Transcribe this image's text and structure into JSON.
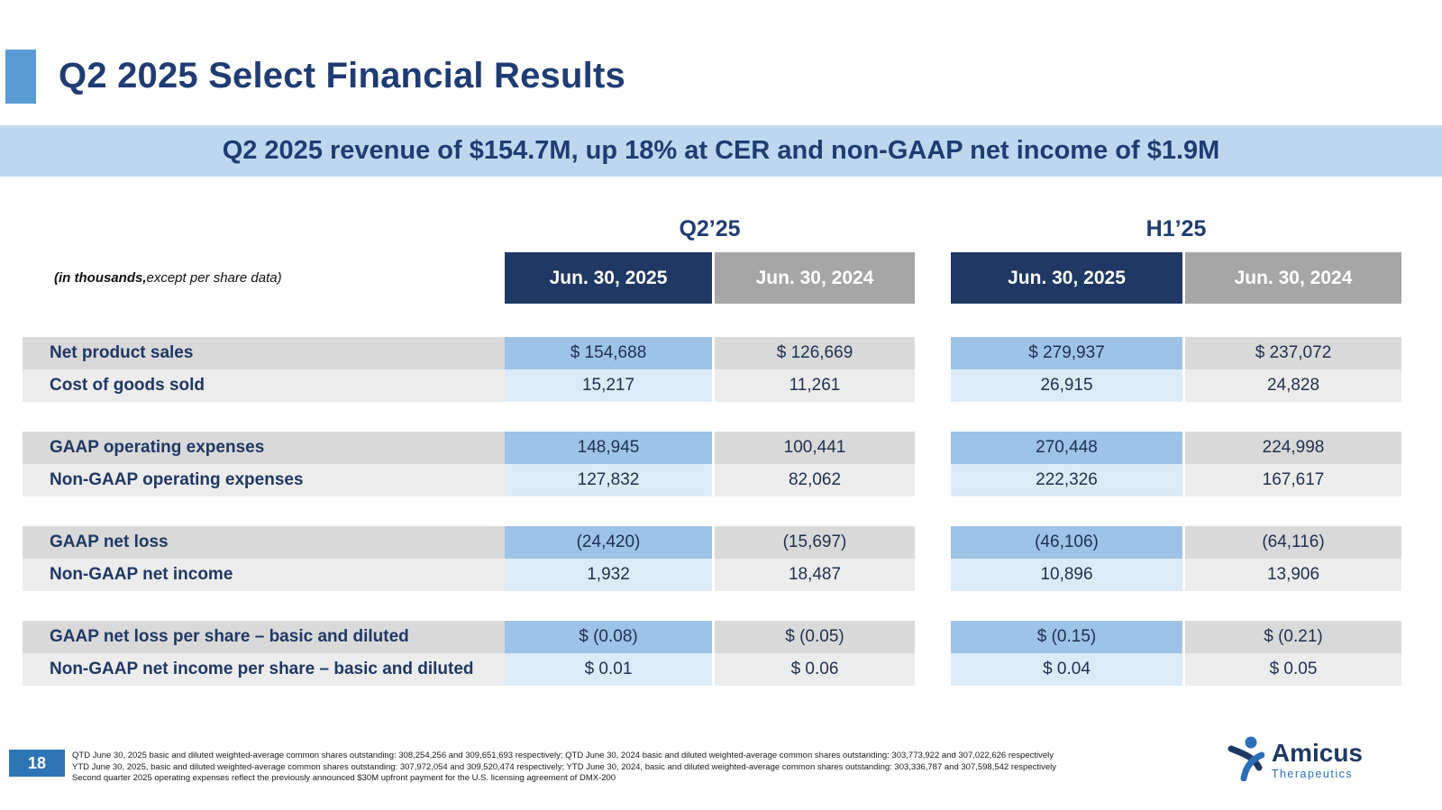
{
  "slide": {
    "title": "Q2 2025 Select Financial Results",
    "banner": "Q2 2025 revenue of $154.7M, up 18% at CER and non-GAAP net income of $1.9M",
    "units_note_bold": "(in thousands,",
    "units_note_rest": " except per share data)"
  },
  "table": {
    "groups": [
      {
        "label": "Q2’25",
        "columns": [
          "Jun. 30, 2025",
          "Jun. 30, 2024"
        ]
      },
      {
        "label": "H1’25",
        "columns": [
          "Jun. 30, 2025",
          "Jun. 30, 2024"
        ]
      }
    ],
    "row_groups": [
      {
        "rows": [
          {
            "label": "Net product sales",
            "values": [
              "$ 154,688",
              "$ 126,669",
              "$ 279,937",
              "$ 237,072"
            ]
          },
          {
            "label": "Cost of goods sold",
            "values": [
              "15,217",
              "11,261",
              "26,915",
              "24,828"
            ]
          }
        ]
      },
      {
        "rows": [
          {
            "label": "GAAP operating expenses",
            "values": [
              "148,945",
              "100,441",
              "270,448",
              "224,998"
            ]
          },
          {
            "label": "Non-GAAP operating expenses",
            "values": [
              "127,832",
              "82,062",
              "222,326",
              "167,617"
            ]
          }
        ]
      },
      {
        "rows": [
          {
            "label": "GAAP net loss",
            "values": [
              "(24,420)",
              "(15,697)",
              "(46,106)",
              "(64,116)"
            ]
          },
          {
            "label": "Non-GAAP net income",
            "values": [
              "1,932",
              "18,487",
              "10,896",
              "13,906"
            ]
          }
        ]
      },
      {
        "rows": [
          {
            "label": "GAAP net loss per share – basic and diluted",
            "values": [
              "$ (0.08)",
              "$ (0.05)",
              "$ (0.15)",
              "$ (0.21)"
            ]
          },
          {
            "label": "Non-GAAP net income per share – basic and diluted",
            "values": [
              "$ 0.01",
              "$ 0.06",
              "$ 0.04",
              "$ 0.05"
            ]
          }
        ]
      }
    ]
  },
  "footer": {
    "page_number": "18",
    "notes": [
      "QTD June 30, 2025 basic and diluted weighted-average common shares outstanding: 308,254,256 and 309,651,693 respectively; QTD June 30, 2024 basic and diluted weighted-average common shares outstanding: 303,773,922 and 307,022,626 respectively",
      "YTD June 30, 2025, basic and diluted weighted-average common shares outstanding: 307,972,054 and 309,520,474 respectively; YTD June 30, 2024, basic and diluted weighted-average common shares outstanding: 303,336,787 and 307,598,542 respectively",
      "Second quarter 2025 operating expenses reflect the previously announced $30M upfront payment for the U.S. licensing agreement of DMX-200"
    ],
    "logo": {
      "name": "Amicus",
      "sub": "Therapeutics"
    }
  },
  "colors": {
    "title_navy": "#1f3c73",
    "accent_square": "#5b9bd5",
    "banner_bg": "#bdd7ee",
    "header_dark": "#1f3864",
    "header_gray": "#a6a6a6",
    "row_dark_gray": "#d9d9d9",
    "row_dark_blue": "#9dc3e6",
    "row_light_gray": "#ececec",
    "row_light_blue": "#dcebf8",
    "page_badge": "#2e75b6"
  }
}
